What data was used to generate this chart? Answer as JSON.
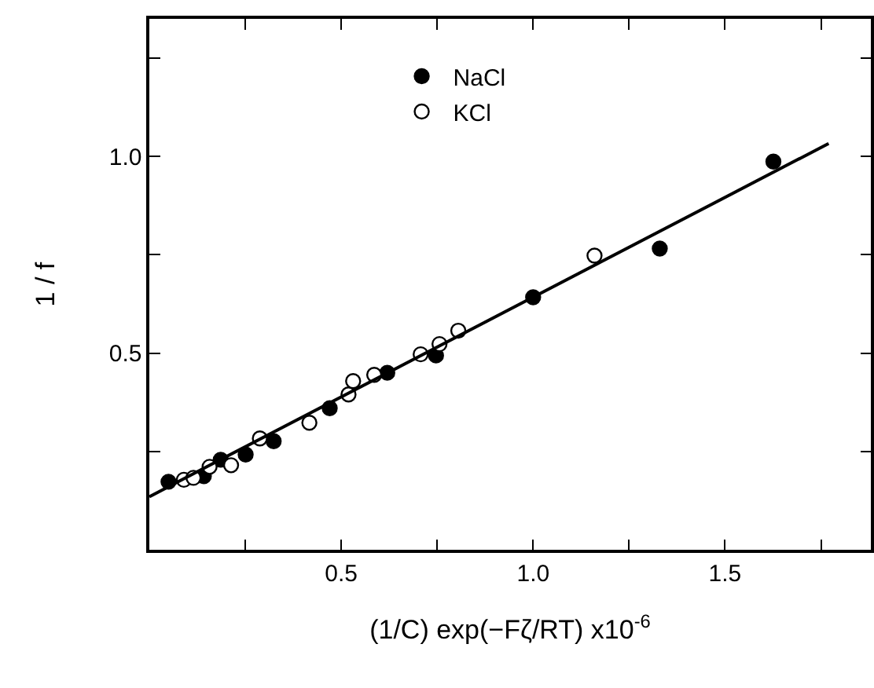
{
  "chart_data": {
    "type": "scatter",
    "xlabel": "(1/C) exp(−Fζ/RT) x10$^{-6}$",
    "ylabel": "1 / f",
    "marker": "circle",
    "grid": false,
    "legend": "top",
    "xlim": [
      0,
      1.88
    ],
    "ylim": [
      0,
      1.35
    ],
    "xticks": [
      {
        "value": 0.25,
        "label": null
      },
      0.5,
      {
        "value": 0.75,
        "label": null
      },
      {
        "value": 1.0,
        "label": "1.0"
      },
      {
        "value": 1.25,
        "label": null
      },
      1.5,
      {
        "value": 1.75,
        "label": null
      }
    ],
    "yticks": [
      {
        "value": 0.25,
        "label": null
      },
      0.5,
      {
        "value": 0.75,
        "label": null
      },
      {
        "value": 1.0,
        "label": "1.0"
      },
      {
        "value": 1.25,
        "label": null
      }
    ],
    "series": [
      {
        "name": "NaCl",
        "color": "#000000",
        "x": [
          0.05,
          0.142,
          0.186,
          0.251,
          0.324,
          0.47,
          0.62,
          0.747,
          1.0,
          1.33,
          1.626
        ],
        "values": [
          0.173,
          0.187,
          0.229,
          0.242,
          0.276,
          0.36,
          0.45,
          0.494,
          0.642,
          0.766,
          0.987
        ]
      },
      {
        "name": "KCl",
        "color": "#ffffff",
        "x": [
          0.09,
          0.115,
          0.157,
          0.213,
          0.288,
          0.417,
          0.519,
          0.531,
          0.586,
          0.707,
          0.756,
          0.805,
          1.16
        ],
        "values": [
          0.178,
          0.183,
          0.211,
          0.215,
          0.283,
          0.323,
          0.395,
          0.429,
          0.445,
          0.497,
          0.523,
          0.557,
          0.748
        ]
      },
      {
        "type": "line",
        "marker": "none",
        "color": "#000000",
        "x": [
          0,
          1.77
        ],
        "values": [
          0.135,
          1.033
        ]
      }
    ]
  }
}
